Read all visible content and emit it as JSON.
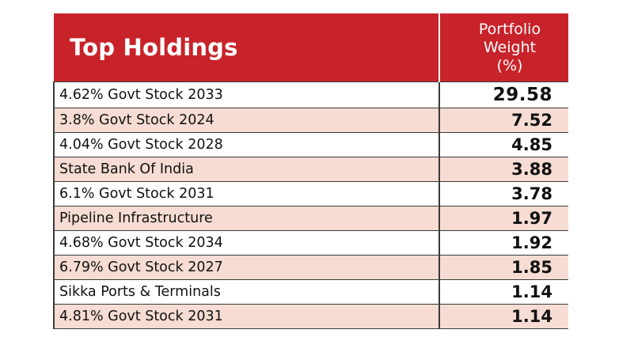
{
  "header": {
    "title": "Top Holdings",
    "weight_line1": "Portfolio",
    "weight_line2": "Weight",
    "weight_line3": "(%)"
  },
  "colors": {
    "header_bg": "#c8232a",
    "row_pink": "#f6dcd2",
    "row_white": "#ffffff"
  },
  "rows": [
    {
      "name": "4.62% Govt Stock 2033",
      "weight": "29.58"
    },
    {
      "name": "3.8% Govt Stock 2024",
      "weight": "7.52"
    },
    {
      "name": "4.04% Govt Stock 2028",
      "weight": "4.85"
    },
    {
      "name": "State Bank Of India",
      "weight": "3.88"
    },
    {
      "name": "6.1% Govt Stock 2031",
      "weight": "3.78"
    },
    {
      "name": "Pipeline Infrastructure",
      "weight": "1.97"
    },
    {
      "name": "4.68% Govt Stock 2034",
      "weight": "1.92"
    },
    {
      "name": "6.79% Govt Stock 2027",
      "weight": "1.85"
    },
    {
      "name": "Sikka Ports & Terminals",
      "weight": "1.14"
    },
    {
      "name": "4.81% Govt Stock 2031",
      "weight": "1.14"
    }
  ]
}
